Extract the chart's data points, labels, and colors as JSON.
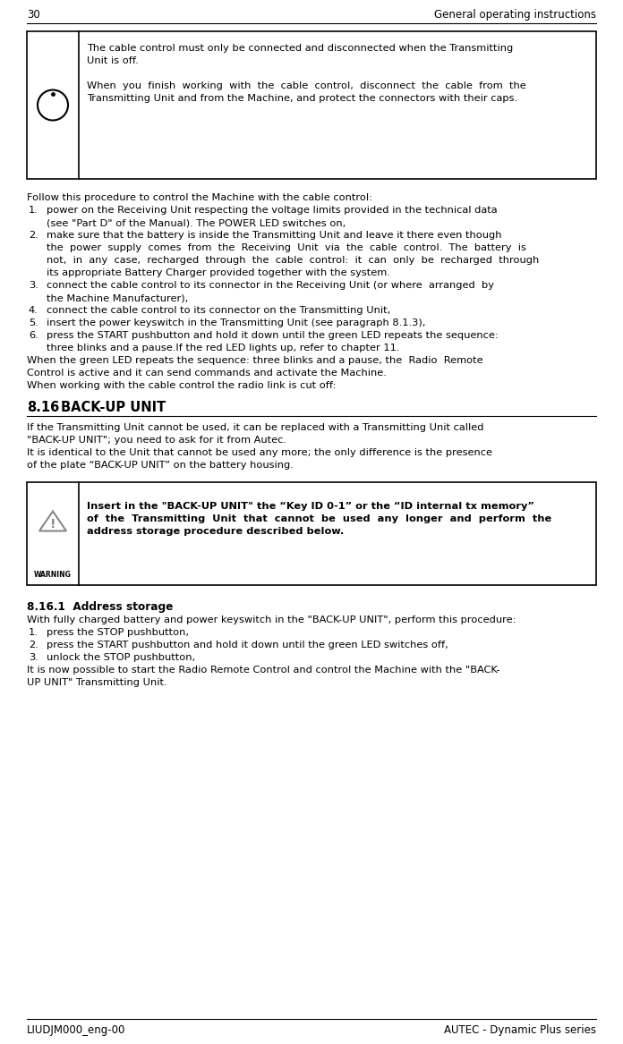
{
  "page_num": "30",
  "header_right": "General operating instructions",
  "footer_left": "LIUDJM000_eng-00",
  "footer_right": "AUTEC - Dynamic Plus series",
  "bg_color": "#ffffff",
  "text_color": "#000000",
  "box_border_color": "#000000",
  "font_size": 8.2,
  "header_font_size": 8.5,
  "section_font_size": 10.5
}
